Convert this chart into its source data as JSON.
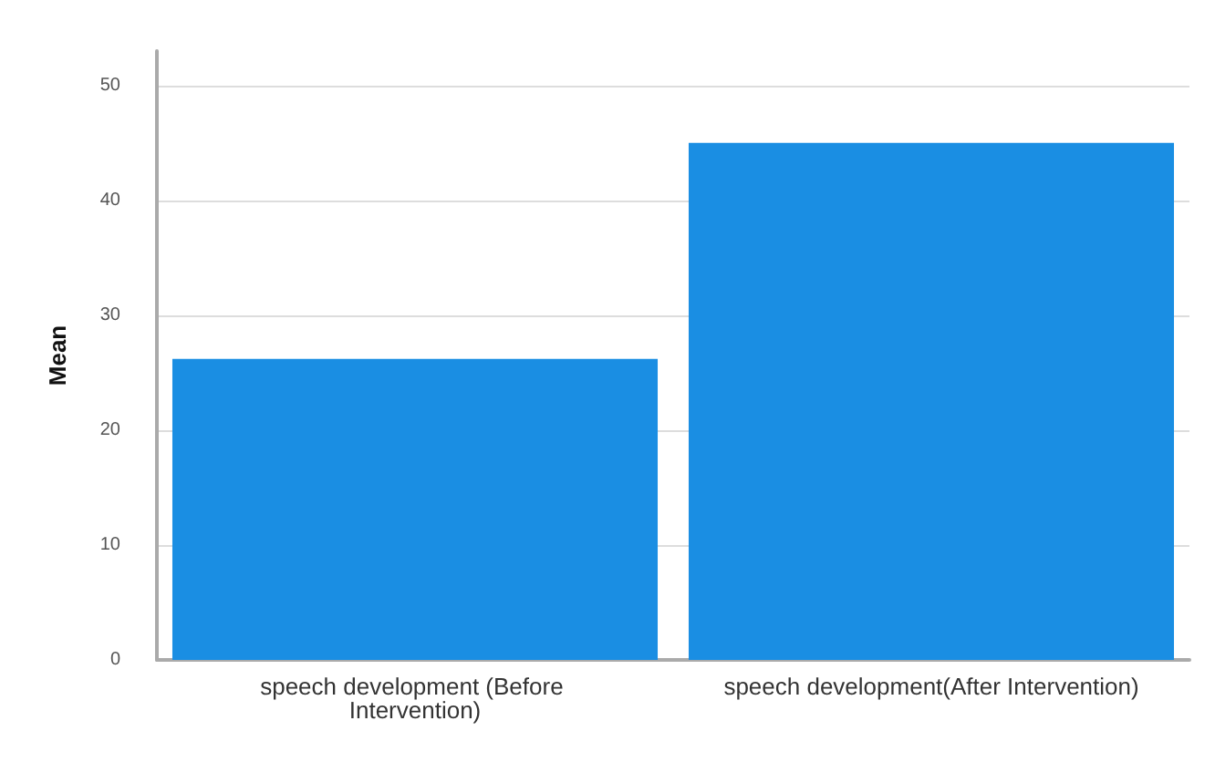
{
  "chart_data": {
    "type": "bar",
    "ylabel": "Mean",
    "categories": [
      "speech development (Before Intervention)",
      "speech development(After Intervention)"
    ],
    "values": [
      26.2,
      45.0
    ],
    "color": "#1a8ee3",
    "ylim": [
      0,
      53
    ],
    "yticks": [
      0,
      10,
      20,
      30,
      40,
      50
    ],
    "grid": "y"
  }
}
